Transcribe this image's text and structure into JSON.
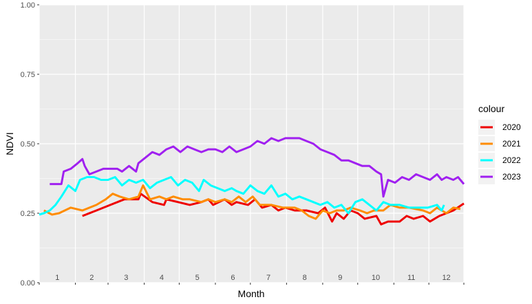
{
  "chart_data": {
    "type": "line",
    "xlabel": "Month",
    "ylabel": "NDVI",
    "xlim": [
      1,
      365
    ],
    "ylim": [
      0,
      1
    ],
    "y_ticks": [
      0,
      0.25,
      0.5,
      0.75,
      1
    ],
    "y_tick_labels": [
      "0.00",
      "0.25",
      "0.50",
      "0.75",
      "1.00"
    ],
    "month_labels": [
      "1",
      "2",
      "3",
      "4",
      "5",
      "6",
      "7",
      "8",
      "9",
      "10",
      "11",
      "12"
    ],
    "grid": true,
    "legend_title": "colour",
    "legend_position": "right",
    "series": [
      {
        "name": "2020",
        "color": "#EE0000",
        "x": [
          38,
          50,
          62,
          74,
          86,
          88,
          98,
          108,
          110,
          120,
          130,
          140,
          146,
          150,
          160,
          166,
          170,
          180,
          186,
          192,
          200,
          206,
          212,
          220,
          230,
          240,
          246,
          252,
          256,
          262,
          268,
          274,
          280,
          290,
          294,
          300,
          310,
          316,
          322,
          330,
          336,
          344,
          350,
          356,
          365
        ],
        "y": [
          0.24,
          0.26,
          0.28,
          0.3,
          0.3,
          0.32,
          0.29,
          0.28,
          0.3,
          0.29,
          0.28,
          0.29,
          0.3,
          0.28,
          0.3,
          0.28,
          0.29,
          0.28,
          0.3,
          0.27,
          0.28,
          0.26,
          0.27,
          0.26,
          0.26,
          0.25,
          0.27,
          0.22,
          0.25,
          0.23,
          0.26,
          0.25,
          0.23,
          0.24,
          0.21,
          0.22,
          0.22,
          0.24,
          0.23,
          0.24,
          0.22,
          0.24,
          0.25,
          0.26,
          0.285
        ]
      },
      {
        "name": "2021",
        "color": "#FF8C00",
        "x": [
          5,
          12,
          18,
          28,
          38,
          50,
          58,
          64,
          70,
          78,
          86,
          90,
          96,
          104,
          110,
          116,
          124,
          130,
          140,
          146,
          152,
          160,
          166,
          172,
          178,
          184,
          190,
          200,
          210,
          220,
          226,
          232,
          238,
          244,
          250,
          256,
          262,
          268,
          276,
          282,
          288,
          296,
          302,
          310,
          318,
          330,
          336,
          342,
          346,
          350,
          356,
          362
        ],
        "y": [
          0.26,
          0.245,
          0.25,
          0.27,
          0.26,
          0.28,
          0.3,
          0.32,
          0.31,
          0.3,
          0.31,
          0.35,
          0.3,
          0.31,
          0.3,
          0.31,
          0.3,
          0.3,
          0.29,
          0.3,
          0.29,
          0.3,
          0.29,
          0.31,
          0.29,
          0.31,
          0.28,
          0.28,
          0.27,
          0.27,
          0.26,
          0.24,
          0.23,
          0.26,
          0.25,
          0.26,
          0.26,
          0.27,
          0.26,
          0.25,
          0.26,
          0.26,
          0.28,
          0.27,
          0.27,
          0.26,
          0.25,
          0.27,
          0.26,
          0.25,
          0.27,
          0.265
        ]
      },
      {
        "name": "2022",
        "color": "#00FFFF",
        "x": [
          1,
          5,
          10,
          15,
          20,
          26,
          32,
          36,
          42,
          48,
          54,
          60,
          66,
          72,
          78,
          84,
          90,
          96,
          102,
          108,
          114,
          120,
          126,
          132,
          138,
          142,
          148,
          154,
          160,
          166,
          170,
          176,
          182,
          188,
          194,
          200,
          206,
          212,
          218,
          224,
          230,
          236,
          242,
          248,
          254,
          260,
          266,
          272,
          278,
          284,
          290,
          296,
          302,
          310,
          318,
          326,
          334,
          342,
          346,
          348
        ],
        "y": [
          0.245,
          0.25,
          0.26,
          0.28,
          0.31,
          0.35,
          0.33,
          0.37,
          0.38,
          0.38,
          0.37,
          0.37,
          0.38,
          0.35,
          0.37,
          0.36,
          0.37,
          0.34,
          0.36,
          0.37,
          0.38,
          0.35,
          0.37,
          0.36,
          0.33,
          0.37,
          0.35,
          0.34,
          0.33,
          0.34,
          0.33,
          0.32,
          0.35,
          0.33,
          0.32,
          0.35,
          0.31,
          0.32,
          0.3,
          0.31,
          0.3,
          0.29,
          0.28,
          0.29,
          0.27,
          0.28,
          0.25,
          0.29,
          0.3,
          0.28,
          0.26,
          0.29,
          0.28,
          0.28,
          0.27,
          0.27,
          0.27,
          0.28,
          0.26,
          0.28
        ]
      },
      {
        "name": "2023",
        "color": "#A020F0",
        "x": [
          10,
          16,
          20,
          22,
          28,
          34,
          38,
          40,
          44,
          50,
          56,
          62,
          68,
          72,
          78,
          84,
          86,
          92,
          98,
          104,
          110,
          116,
          122,
          128,
          134,
          140,
          146,
          152,
          158,
          164,
          170,
          176,
          182,
          188,
          194,
          200,
          206,
          212,
          218,
          224,
          230,
          236,
          242,
          248,
          254,
          260,
          266,
          272,
          278,
          284,
          290,
          294,
          296,
          300,
          306,
          312,
          318,
          324,
          330,
          336,
          342,
          346,
          350,
          356,
          360,
          365
        ],
        "y": [
          0.355,
          0.355,
          0.355,
          0.4,
          0.41,
          0.43,
          0.445,
          0.42,
          0.39,
          0.4,
          0.41,
          0.41,
          0.41,
          0.4,
          0.42,
          0.4,
          0.43,
          0.45,
          0.47,
          0.46,
          0.48,
          0.49,
          0.47,
          0.49,
          0.48,
          0.47,
          0.48,
          0.48,
          0.47,
          0.49,
          0.47,
          0.48,
          0.49,
          0.51,
          0.5,
          0.52,
          0.51,
          0.52,
          0.52,
          0.52,
          0.51,
          0.5,
          0.48,
          0.47,
          0.46,
          0.44,
          0.44,
          0.43,
          0.42,
          0.42,
          0.4,
          0.39,
          0.31,
          0.37,
          0.36,
          0.38,
          0.37,
          0.39,
          0.38,
          0.37,
          0.39,
          0.37,
          0.38,
          0.37,
          0.38,
          0.355
        ]
      }
    ]
  }
}
